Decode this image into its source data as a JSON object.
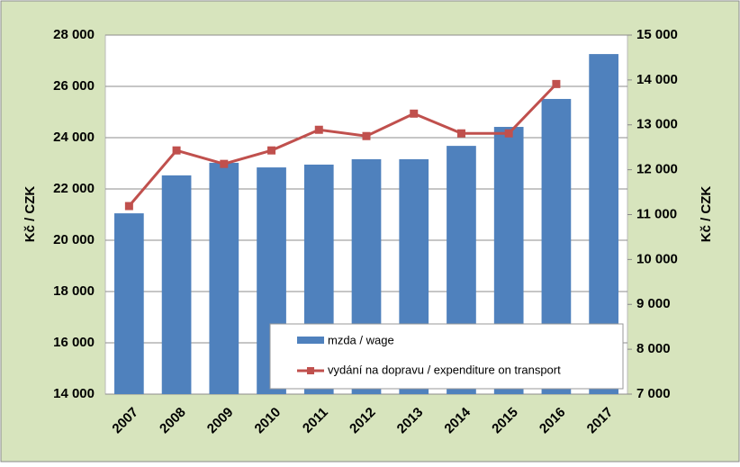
{
  "chart_data": {
    "type": "bar-line",
    "categories": [
      "2007",
      "2008",
      "2009",
      "2010",
      "2011",
      "2012",
      "2013",
      "2014",
      "2015",
      "2016",
      "2017"
    ],
    "series": [
      {
        "name": "mzda / wage",
        "type": "bar",
        "color": "#4f81bd",
        "values": [
          21050,
          22530,
          23020,
          22840,
          22950,
          23160,
          23160,
          23680,
          24420,
          25510,
          27260
        ]
      },
      {
        "name": "vydání na dopravu / expenditure on transport",
        "type": "line",
        "axis": "y2",
        "color": "#c0504d",
        "values": [
          11190,
          12430,
          12130,
          12430,
          12890,
          12750,
          13250,
          12810,
          12810,
          13910,
          null
        ]
      }
    ],
    "ylabel": "Kč / CZK",
    "y2label": "Kč / CZK",
    "ylim": [
      14000,
      28000
    ],
    "yticks": [
      {
        "value": 14000,
        "label": "14 000"
      },
      {
        "value": 16000,
        "label": "16 000"
      },
      {
        "value": 18000,
        "label": "18 000"
      },
      {
        "value": 20000,
        "label": "20 000"
      },
      {
        "value": 22000,
        "label": "22 000"
      },
      {
        "value": 24000,
        "label": "24 000"
      },
      {
        "value": 26000,
        "label": "26 000"
      },
      {
        "value": 28000,
        "label": "28 000"
      }
    ],
    "y2lim": [
      7000,
      15000
    ],
    "y2ticks": [
      {
        "value": 7000,
        "label": "7 000"
      },
      {
        "value": 8000,
        "label": "8 000"
      },
      {
        "value": 9000,
        "label": "9 000"
      },
      {
        "value": 10000,
        "label": "10 000"
      },
      {
        "value": 11000,
        "label": "11 000"
      },
      {
        "value": 12000,
        "label": "12 000"
      },
      {
        "value": 13000,
        "label": "13 000"
      },
      {
        "value": 14000,
        "label": "14 000"
      },
      {
        "value": 15000,
        "label": "15 000"
      }
    ],
    "grid": true
  }
}
